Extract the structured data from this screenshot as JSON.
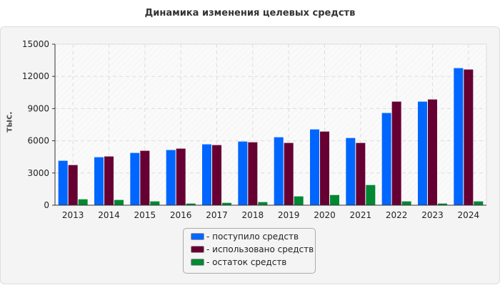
{
  "chart_data": {
    "type": "bar",
    "title": "Динамика изменения целевых средств",
    "ylabel": "тыс.",
    "xlabel": "",
    "ylim": [
      0,
      15000
    ],
    "yticks": [
      0,
      3000,
      6000,
      9000,
      12000,
      15000
    ],
    "grid": true,
    "legend_position": "bottom",
    "categories": [
      "2013",
      "2014",
      "2015",
      "2016",
      "2017",
      "2018",
      "2019",
      "2020",
      "2021",
      "2022",
      "2023",
      "2024"
    ],
    "series": [
      {
        "name": "- поступило средств",
        "color": "#0066ff",
        "values": [
          4140,
          4470,
          4870,
          5140,
          5670,
          5930,
          6330,
          7060,
          6260,
          8590,
          9650,
          12770
        ]
      },
      {
        "name": "- использовано средств",
        "color": "#660033",
        "values": [
          3740,
          4540,
          5070,
          5270,
          5600,
          5860,
          5800,
          6860,
          5800,
          9650,
          9850,
          12640
        ]
      },
      {
        "name": "- остаток средств",
        "color": "#008833",
        "values": [
          550,
          490,
          355,
          155,
          220,
          290,
          820,
          950,
          1880,
          355,
          155,
          355
        ]
      }
    ]
  }
}
